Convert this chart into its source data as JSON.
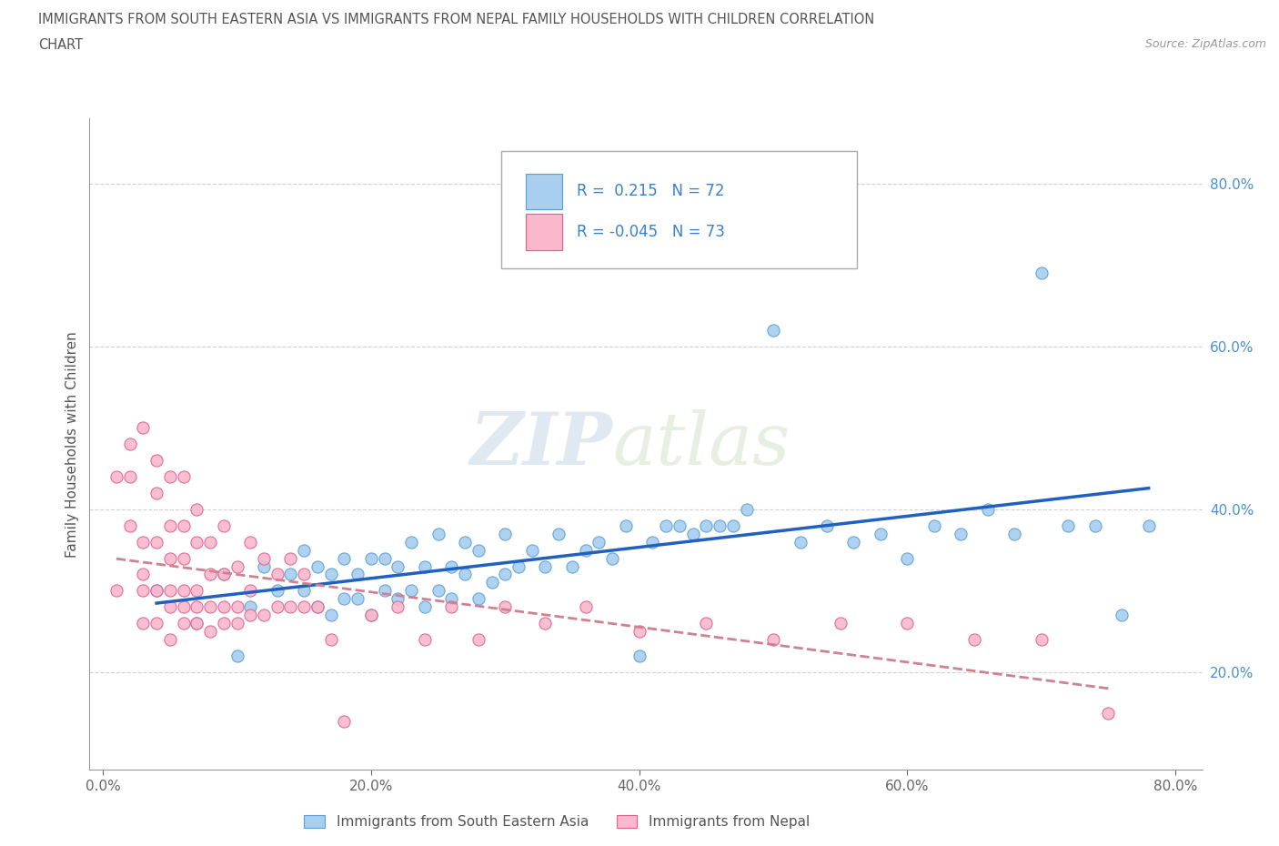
{
  "title_line1": "IMMIGRANTS FROM SOUTH EASTERN ASIA VS IMMIGRANTS FROM NEPAL FAMILY HOUSEHOLDS WITH CHILDREN CORRELATION",
  "title_line2": "CHART",
  "source": "Source: ZipAtlas.com",
  "ylabel": "Family Households with Children",
  "legend_label1": "Immigrants from South Eastern Asia",
  "legend_label2": "Immigrants from Nepal",
  "R1": 0.215,
  "N1": 72,
  "R2": -0.045,
  "N2": 73,
  "xlim": [
    -0.01,
    0.82
  ],
  "ylim": [
    0.08,
    0.88
  ],
  "yticks": [
    0.2,
    0.4,
    0.6,
    0.8
  ],
  "xticks": [
    0.0,
    0.2,
    0.4,
    0.6,
    0.8
  ],
  "color_sea": "#a8cef0",
  "color_nepal": "#f9b8cc",
  "edge_sea": "#5b9fd4",
  "edge_nepal": "#e06090",
  "trend_color_sea": "#2060c0",
  "trend_color_nepal": "#d08090",
  "background_color": "#ffffff",
  "watermark_part1": "ZIP",
  "watermark_part2": "atlas",
  "sea_x": [
    0.04,
    0.07,
    0.09,
    0.1,
    0.11,
    0.12,
    0.13,
    0.14,
    0.15,
    0.15,
    0.16,
    0.16,
    0.17,
    0.17,
    0.18,
    0.18,
    0.19,
    0.19,
    0.2,
    0.2,
    0.21,
    0.21,
    0.22,
    0.22,
    0.23,
    0.23,
    0.24,
    0.24,
    0.25,
    0.25,
    0.26,
    0.26,
    0.27,
    0.27,
    0.28,
    0.28,
    0.29,
    0.3,
    0.3,
    0.31,
    0.32,
    0.33,
    0.34,
    0.35,
    0.36,
    0.37,
    0.38,
    0.39,
    0.4,
    0.41,
    0.42,
    0.43,
    0.44,
    0.45,
    0.46,
    0.47,
    0.48,
    0.5,
    0.52,
    0.54,
    0.56,
    0.58,
    0.6,
    0.62,
    0.64,
    0.66,
    0.68,
    0.7,
    0.72,
    0.74,
    0.76,
    0.78
  ],
  "sea_y": [
    0.3,
    0.26,
    0.32,
    0.22,
    0.28,
    0.33,
    0.3,
    0.32,
    0.3,
    0.35,
    0.28,
    0.33,
    0.27,
    0.32,
    0.29,
    0.34,
    0.29,
    0.32,
    0.27,
    0.34,
    0.3,
    0.34,
    0.29,
    0.33,
    0.3,
    0.36,
    0.28,
    0.33,
    0.3,
    0.37,
    0.29,
    0.33,
    0.32,
    0.36,
    0.29,
    0.35,
    0.31,
    0.32,
    0.37,
    0.33,
    0.35,
    0.33,
    0.37,
    0.33,
    0.35,
    0.36,
    0.34,
    0.38,
    0.22,
    0.36,
    0.38,
    0.38,
    0.37,
    0.38,
    0.38,
    0.38,
    0.4,
    0.62,
    0.36,
    0.38,
    0.36,
    0.37,
    0.34,
    0.38,
    0.37,
    0.4,
    0.37,
    0.69,
    0.38,
    0.38,
    0.27,
    0.38
  ],
  "nepal_x": [
    0.01,
    0.01,
    0.02,
    0.02,
    0.02,
    0.03,
    0.03,
    0.03,
    0.03,
    0.03,
    0.04,
    0.04,
    0.04,
    0.04,
    0.04,
    0.05,
    0.05,
    0.05,
    0.05,
    0.05,
    0.05,
    0.06,
    0.06,
    0.06,
    0.06,
    0.06,
    0.06,
    0.07,
    0.07,
    0.07,
    0.07,
    0.07,
    0.08,
    0.08,
    0.08,
    0.08,
    0.09,
    0.09,
    0.09,
    0.09,
    0.1,
    0.1,
    0.1,
    0.11,
    0.11,
    0.11,
    0.12,
    0.12,
    0.13,
    0.13,
    0.14,
    0.14,
    0.15,
    0.15,
    0.16,
    0.17,
    0.18,
    0.2,
    0.22,
    0.24,
    0.26,
    0.28,
    0.3,
    0.33,
    0.36,
    0.4,
    0.45,
    0.5,
    0.55,
    0.6,
    0.65,
    0.7,
    0.75
  ],
  "nepal_y": [
    0.3,
    0.44,
    0.38,
    0.44,
    0.48,
    0.26,
    0.32,
    0.36,
    0.5,
    0.3,
    0.26,
    0.3,
    0.36,
    0.42,
    0.46,
    0.24,
    0.28,
    0.3,
    0.34,
    0.38,
    0.44,
    0.26,
    0.28,
    0.3,
    0.34,
    0.38,
    0.44,
    0.26,
    0.28,
    0.3,
    0.36,
    0.4,
    0.25,
    0.28,
    0.32,
    0.36,
    0.26,
    0.28,
    0.32,
    0.38,
    0.26,
    0.28,
    0.33,
    0.27,
    0.3,
    0.36,
    0.27,
    0.34,
    0.28,
    0.32,
    0.28,
    0.34,
    0.28,
    0.32,
    0.28,
    0.24,
    0.14,
    0.27,
    0.28,
    0.24,
    0.28,
    0.24,
    0.28,
    0.26,
    0.28,
    0.25,
    0.26,
    0.24,
    0.26,
    0.26,
    0.24,
    0.24,
    0.15
  ]
}
